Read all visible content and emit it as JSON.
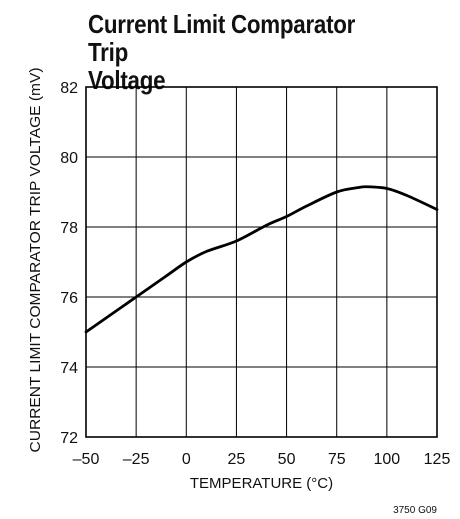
{
  "title_line1": "Current Limit Comparator Trip",
  "title_line2": "Voltage",
  "figure_id": "3750 G09",
  "chart_data": {
    "type": "line",
    "title": "Current Limit Comparator Trip Voltage",
    "xlabel": "TEMPERATURE (°C)",
    "ylabel": "CURRENT LIMIT COMPARATOR TRIP VOLTAGE (mV)",
    "xlim": [
      -50,
      125
    ],
    "ylim": [
      72,
      82
    ],
    "xticks": [
      -50,
      -25,
      0,
      25,
      50,
      75,
      100,
      125
    ],
    "xtick_labels": [
      "–50",
      "–25",
      "0",
      "25",
      "50",
      "75",
      "100",
      "125"
    ],
    "yticks": [
      72,
      74,
      76,
      78,
      80,
      82
    ],
    "ytick_labels": [
      "72",
      "74",
      "76",
      "78",
      "80",
      "82"
    ],
    "grid": true,
    "line_color": "#000000",
    "series": [
      {
        "x": [
          -50,
          -40,
          -25,
          -10,
          0,
          10,
          25,
          40,
          50,
          60,
          75,
          85,
          90,
          100,
          110,
          125
        ],
        "y": [
          75.0,
          75.4,
          76.0,
          76.6,
          77.0,
          77.3,
          77.6,
          78.05,
          78.3,
          78.6,
          79.0,
          79.12,
          79.15,
          79.1,
          78.9,
          78.5
        ]
      }
    ]
  }
}
